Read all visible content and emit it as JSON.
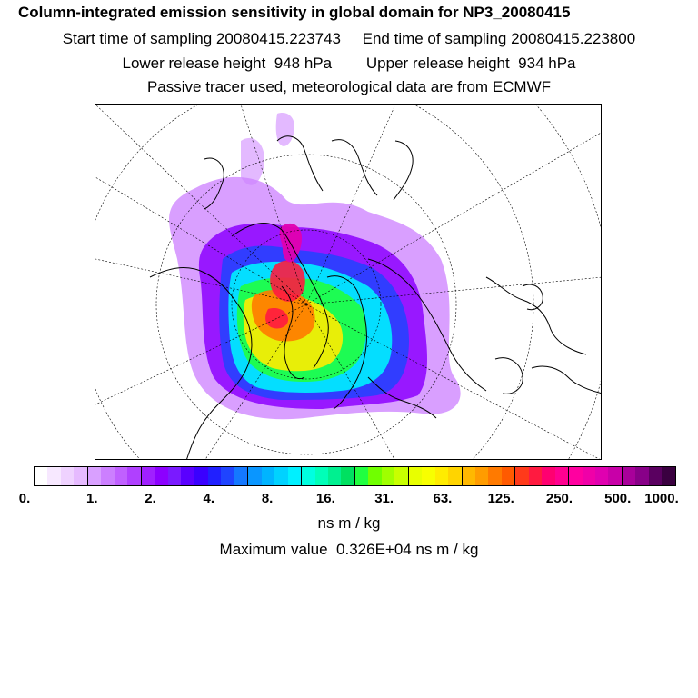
{
  "header": {
    "title": "Column-integrated emission sensitivity in global domain for NP3_20080415",
    "line2": "Start time of sampling 20080415.223743     End time of sampling 20080415.223800",
    "line3": "Lower release height  948 hPa        Upper release height  934 hPa",
    "line4": "Passive tracer used, meteorological data are from ECMWF"
  },
  "colorbar": {
    "colors": [
      "#ffffff",
      "#f7e8ff",
      "#efd2ff",
      "#e6baff",
      "#d9a0ff",
      "#cc7fff",
      "#c060ff",
      "#b040ff",
      "#a020ff",
      "#8c00ff",
      "#7a1aff",
      "#5a00ff",
      "#3a00ff",
      "#2020ff",
      "#1f44ff",
      "#1478ff",
      "#0a96ff",
      "#00b4ff",
      "#00d2ff",
      "#00f0ff",
      "#00ffe0",
      "#00ffb8",
      "#00f090",
      "#00e060",
      "#20ff40",
      "#70ff00",
      "#a0ff00",
      "#c8ff00",
      "#e8ff00",
      "#f8ff00",
      "#ffec00",
      "#ffd400",
      "#ffb800",
      "#ff9c00",
      "#ff7a00",
      "#ff5a00",
      "#ff3a1a",
      "#ff1a40",
      "#ff0070",
      "#ff0090",
      "#ff00a0",
      "#f000a8",
      "#e000b0",
      "#c800a8",
      "#a8009a",
      "#880088",
      "#5a0060",
      "#3a0040"
    ],
    "ticks": [
      "0.",
      "1.",
      "2.",
      "4.",
      "8.",
      "16.",
      "31.",
      "63.",
      "125.",
      "250.",
      "500.",
      "1000."
    ],
    "units": "ns m / kg",
    "max_value": "Maximum value  0.326E+04 ns m / kg"
  },
  "map": {
    "projection": "polar-stereographic",
    "plume_colors": {
      "outer": "#cc7fff",
      "violet": "#8c00ff",
      "blue": "#1f44ff",
      "cyan": "#00f0ff",
      "green": "#20ff40",
      "yellow": "#ffec00",
      "orange": "#ff7a00",
      "red": "#ff1a40",
      "magenta": "#e000b0"
    }
  }
}
